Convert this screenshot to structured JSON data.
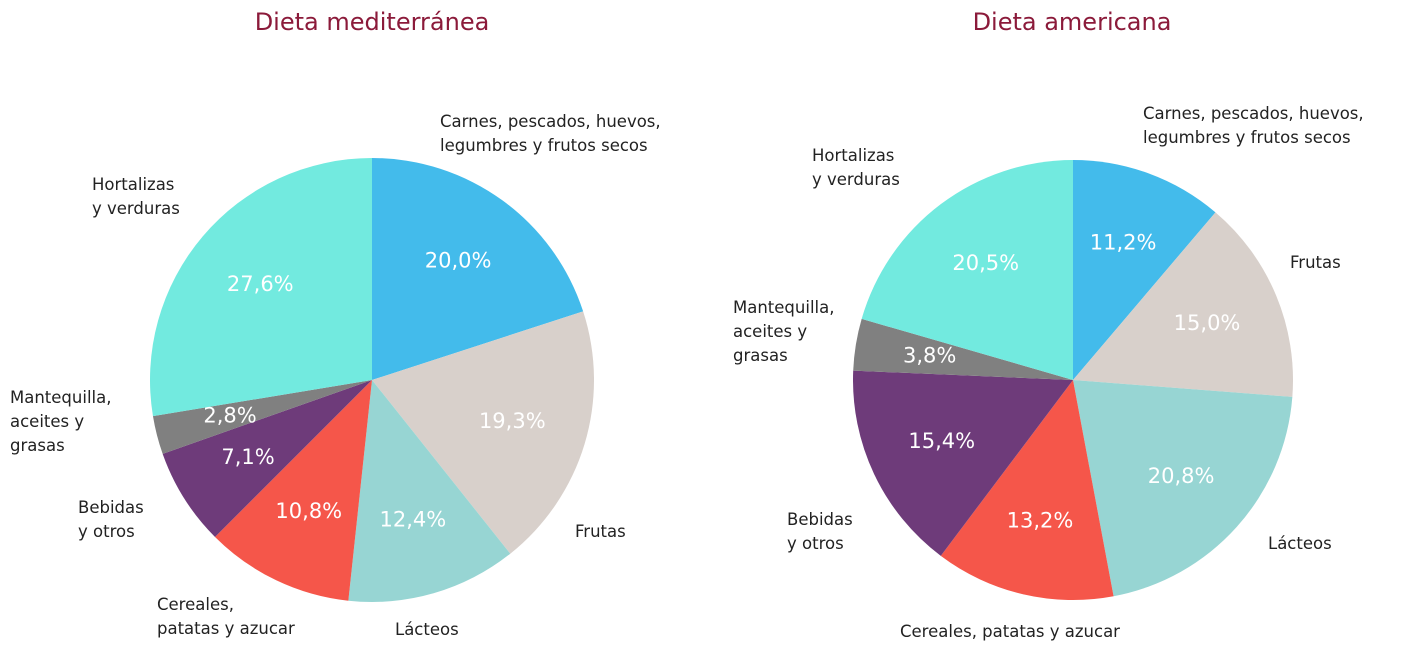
{
  "chart_data": [
    {
      "type": "pie",
      "title": "Dieta mediterránea",
      "categories": [
        "Carnes, pescados, huevos,\nlegumbres y frutos secos",
        "Frutas",
        "Lácteos",
        "Cereales,\npatatas y azucar",
        "Bebidas\ny otros",
        "Mantequilla,\naceites y\ngrasas",
        "Hortalizas\ny verduras"
      ],
      "values": [
        20.0,
        19.3,
        12.4,
        10.8,
        7.1,
        2.8,
        27.6
      ],
      "value_labels": [
        "20,0%",
        "19,3%",
        "12,4%",
        "10,8%",
        "7,1%",
        "2,8%",
        "27,6%"
      ],
      "colors": [
        "#43bbeb",
        "#d8d0cb",
        "#97d5d3",
        "#f5564a",
        "#6e3b7a",
        "#808080",
        "#72eadf"
      ]
    },
    {
      "type": "pie",
      "title": "Dieta americana",
      "categories": [
        "Carnes, pescados, huevos,\nlegumbres y frutos secos",
        "Frutas",
        "Lácteos",
        "Cereales, patatas y azucar",
        "Bebidas\ny otros",
        "Mantequilla,\naceites y\ngrasas",
        "Hortalizas\ny verduras"
      ],
      "values": [
        11.2,
        15.0,
        20.8,
        13.2,
        15.4,
        3.8,
        20.5
      ],
      "value_labels": [
        "11,2%",
        "15,0%",
        "20,8%",
        "13,2%",
        "15,4%",
        "3,8%",
        "20,5%"
      ],
      "colors": [
        "#43bbeb",
        "#d8d0cb",
        "#97d5d3",
        "#f5564a",
        "#6e3b7a",
        "#808080",
        "#72eadf"
      ]
    }
  ]
}
